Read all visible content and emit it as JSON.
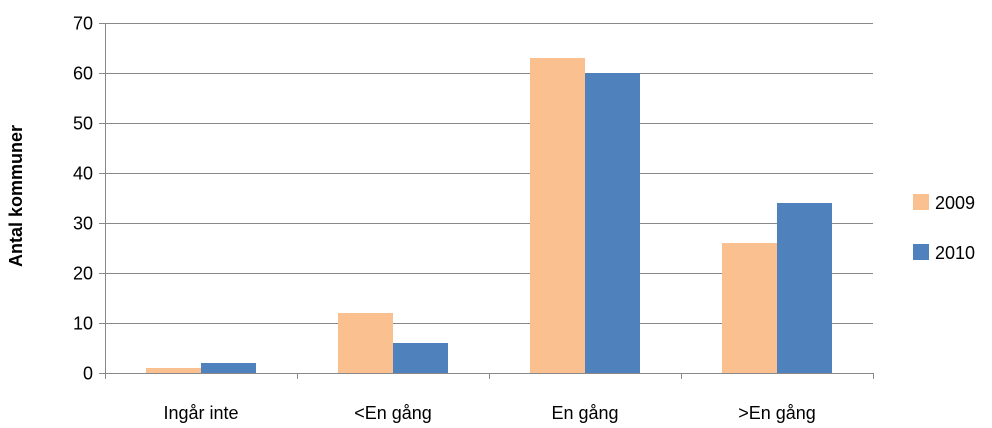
{
  "chart_data": {
    "type": "bar",
    "title": "",
    "xlabel": "",
    "ylabel": "Antal kommuner",
    "categories": [
      "Ingår inte",
      "<En gång",
      "En gång",
      ">En gång"
    ],
    "series": [
      {
        "name": "2009",
        "values": [
          1,
          12,
          63,
          26
        ],
        "color": "#FAC090"
      },
      {
        "name": "2010",
        "values": [
          2,
          6,
          60,
          34
        ],
        "color": "#4F81BD"
      }
    ],
    "ylim": [
      0,
      70
    ],
    "yticks": [
      0,
      10,
      20,
      30,
      40,
      50,
      60,
      70
    ],
    "grid": true,
    "legend_position": "right"
  }
}
